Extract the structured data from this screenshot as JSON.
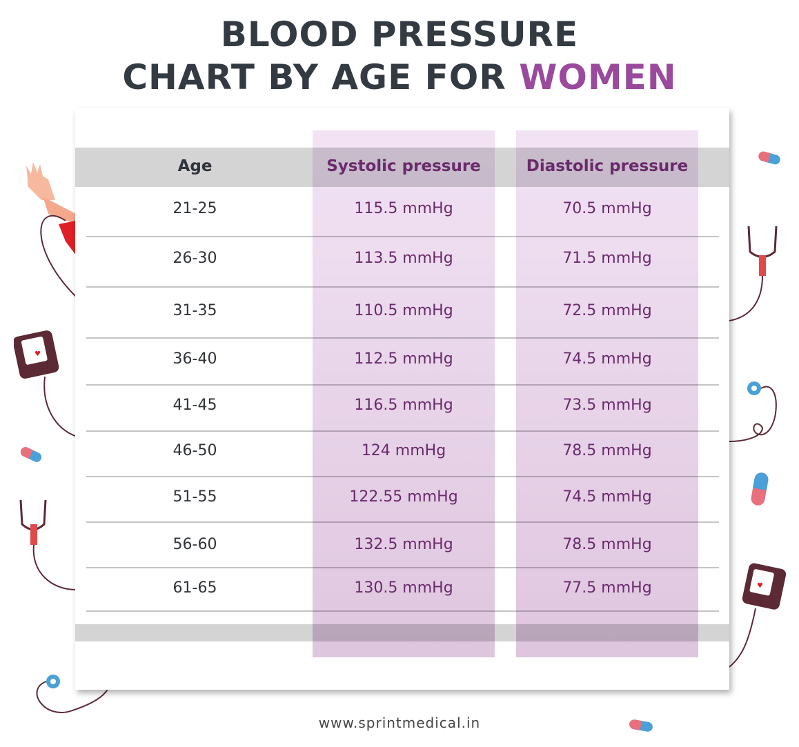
{
  "title": {
    "line1": "BLOOD PRESSURE",
    "line2_prefix": "CHART BY AGE FOR ",
    "line2_accent": "WOMEN"
  },
  "colors": {
    "title": "#333a42",
    "accent": "#9a4a9c",
    "value_text": "#6a2a6c",
    "header_band": "#d4d4d4",
    "column_tint": "#ecd8ee"
  },
  "table": {
    "headers": [
      "Age",
      "Systolic pressure",
      "Diastolic pressure"
    ],
    "rows": [
      {
        "age": "21-25",
        "systolic": "115.5 mmHg",
        "diastolic": "70.5 mmHg"
      },
      {
        "age": "26-30",
        "systolic": "113.5 mmHg",
        "diastolic": "71.5 mmHg"
      },
      {
        "age": "31-35",
        "systolic": "110.5 mmHg",
        "diastolic": "72.5 mmHg"
      },
      {
        "age": "36-40",
        "systolic": "112.5 mmHg",
        "diastolic": "74.5 mmHg"
      },
      {
        "age": "41-45",
        "systolic": "116.5 mmHg",
        "diastolic": "73.5 mmHg"
      },
      {
        "age": "46-50",
        "systolic": "124 mmHg",
        "diastolic": "78.5 mmHg"
      },
      {
        "age": "51-55",
        "systolic": "122.55 mmHg",
        "diastolic": "74.5 mmHg"
      },
      {
        "age": "56-60",
        "systolic": "132.5 mmHg",
        "diastolic": "78.5 mmHg"
      },
      {
        "age": "61-65",
        "systolic": "130.5 mmHg",
        "diastolic": "77.5 mmHg"
      }
    ]
  },
  "footer": {
    "website": "www.sprintmedical.in"
  },
  "decorations": [
    "hand-with-cuff-icon",
    "bp-monitor-icon",
    "stethoscope-icon",
    "pill-icon"
  ]
}
